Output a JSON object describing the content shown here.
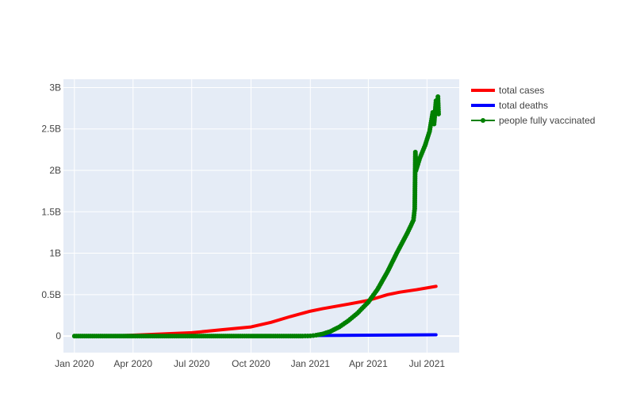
{
  "chart_data": {
    "type": "line",
    "title": "",
    "xlabel": "",
    "ylabel": "",
    "grid": true,
    "legend_position": "right",
    "x_axis": {
      "type": "date",
      "range": [
        "2019-12-15",
        "2021-08-20"
      ],
      "ticks": [
        {
          "date": "2020-01-01",
          "label": "Jan 2020"
        },
        {
          "date": "2020-04-01",
          "label": "Apr 2020"
        },
        {
          "date": "2020-07-01",
          "label": "Jul 2020"
        },
        {
          "date": "2020-10-01",
          "label": "Oct 2020"
        },
        {
          "date": "2021-01-01",
          "label": "Jan 2021"
        },
        {
          "date": "2021-04-01",
          "label": "Apr 2021"
        },
        {
          "date": "2021-07-01",
          "label": "Jul 2021"
        }
      ]
    },
    "y_axis": {
      "range": [
        -200000000,
        3100000000
      ],
      "ticks": [
        {
          "value": 0,
          "label": "0"
        },
        {
          "value": 500000000,
          "label": "0.5B"
        },
        {
          "value": 1000000000,
          "label": "1B"
        },
        {
          "value": 1500000000,
          "label": "1.5B"
        },
        {
          "value": 2000000000,
          "label": "2B"
        },
        {
          "value": 2500000000,
          "label": "2.5B"
        },
        {
          "value": 3000000000,
          "label": "3B"
        }
      ]
    },
    "series": [
      {
        "name": "total cases",
        "color": "#ff0000",
        "mode": "lines",
        "points": [
          [
            "2020-01-01",
            0
          ],
          [
            "2020-03-01",
            1000000
          ],
          [
            "2020-04-01",
            10000000
          ],
          [
            "2020-05-15",
            25000000
          ],
          [
            "2020-07-01",
            40000000
          ],
          [
            "2020-08-15",
            75000000
          ],
          [
            "2020-10-01",
            110000000
          ],
          [
            "2020-11-01",
            165000000
          ],
          [
            "2020-12-01",
            235000000
          ],
          [
            "2021-01-01",
            300000000
          ],
          [
            "2021-01-20",
            330000000
          ],
          [
            "2021-03-01",
            385000000
          ],
          [
            "2021-04-01",
            430000000
          ],
          [
            "2021-05-01",
            500000000
          ],
          [
            "2021-05-20",
            530000000
          ],
          [
            "2021-06-15",
            560000000
          ],
          [
            "2021-07-15",
            600000000
          ]
        ]
      },
      {
        "name": "total deaths",
        "color": "#0000ff",
        "mode": "lines",
        "points": [
          [
            "2020-01-01",
            0
          ],
          [
            "2020-07-01",
            1000000
          ],
          [
            "2021-01-01",
            6000000
          ],
          [
            "2021-04-01",
            10000000
          ],
          [
            "2021-07-15",
            15000000
          ]
        ]
      },
      {
        "name": "people fully vaccinated",
        "color": "#008000",
        "mode": "lines+markers",
        "points": [
          [
            "2020-01-01",
            0
          ],
          [
            "2020-02-01",
            0
          ],
          [
            "2020-03-01",
            0
          ],
          [
            "2020-04-01",
            0
          ],
          [
            "2020-05-01",
            0
          ],
          [
            "2020-06-01",
            0
          ],
          [
            "2020-07-01",
            0
          ],
          [
            "2020-08-01",
            0
          ],
          [
            "2020-09-01",
            0
          ],
          [
            "2020-10-01",
            0
          ],
          [
            "2020-11-01",
            0
          ],
          [
            "2020-12-01",
            0
          ],
          [
            "2020-12-20",
            0
          ],
          [
            "2021-01-01",
            2000000
          ],
          [
            "2021-01-10",
            10000000
          ],
          [
            "2021-01-20",
            25000000
          ],
          [
            "2021-02-01",
            55000000
          ],
          [
            "2021-02-15",
            110000000
          ],
          [
            "2021-03-01",
            185000000
          ],
          [
            "2021-03-15",
            275000000
          ],
          [
            "2021-04-01",
            410000000
          ],
          [
            "2021-04-15",
            560000000
          ],
          [
            "2021-05-01",
            780000000
          ],
          [
            "2021-05-15",
            1000000000
          ],
          [
            "2021-06-01",
            1250000000
          ],
          [
            "2021-06-10",
            1400000000
          ],
          [
            "2021-06-12",
            1540000000
          ],
          [
            "2021-06-13",
            2220000000
          ],
          [
            "2021-06-14",
            2000000000
          ],
          [
            "2021-06-20",
            2150000000
          ],
          [
            "2021-06-28",
            2300000000
          ],
          [
            "2021-07-05",
            2470000000
          ],
          [
            "2021-07-10",
            2700000000
          ],
          [
            "2021-07-12",
            2560000000
          ],
          [
            "2021-07-15",
            2840000000
          ],
          [
            "2021-07-17",
            2700000000
          ],
          [
            "2021-07-18",
            2890000000
          ],
          [
            "2021-07-19",
            2680000000
          ]
        ]
      }
    ]
  }
}
